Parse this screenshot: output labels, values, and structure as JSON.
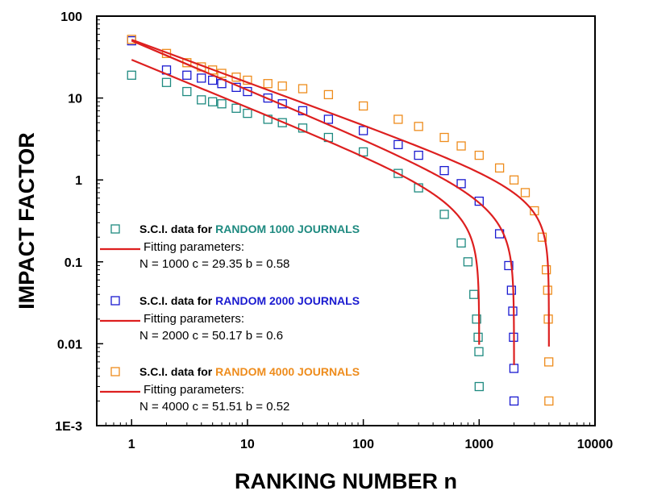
{
  "chart_data": {
    "type": "scatter",
    "xscale": "log",
    "yscale": "log",
    "xlim": [
      0.5,
      10000
    ],
    "ylim": [
      0.001,
      100
    ],
    "xlabel": "RANKING NUMBER  n",
    "ylabel": "IMPACT FACTOR",
    "x_ticks": [
      "1",
      "10",
      "100",
      "1000",
      "10000"
    ],
    "y_ticks": [
      "1E-3",
      "0.01",
      "0.1",
      "1",
      "10",
      "100"
    ],
    "grid": false,
    "marker": "open-square",
    "fit_color": "#dd1f1f",
    "series": [
      {
        "legend_prefix": "S.C.I. data for ",
        "legend_highlight": "RANDOM 1000 JOURNALS",
        "color": "#1e8a80",
        "N": 1000,
        "c": 29.35,
        "b": 0.58,
        "points": [
          [
            1,
            19
          ],
          [
            2,
            15.5
          ],
          [
            3,
            12
          ],
          [
            4,
            9.5
          ],
          [
            5,
            9
          ],
          [
            6,
            8.5
          ],
          [
            8,
            7.5
          ],
          [
            10,
            6.5
          ],
          [
            15,
            5.5
          ],
          [
            20,
            5
          ],
          [
            30,
            4.3
          ],
          [
            50,
            3.3
          ],
          [
            100,
            2.2
          ],
          [
            200,
            1.2
          ],
          [
            300,
            0.8
          ],
          [
            500,
            0.38
          ],
          [
            700,
            0.17
          ],
          [
            800,
            0.1
          ],
          [
            900,
            0.04
          ],
          [
            950,
            0.02
          ],
          [
            980,
            0.012
          ],
          [
            995,
            0.008
          ],
          [
            1000,
            0.003
          ]
        ]
      },
      {
        "legend_prefix": "S.C.I. data for ",
        "legend_highlight": "RANDOM 2000 JOURNALS",
        "color": "#1a1ad0",
        "N": 2000,
        "c": 50.17,
        "b": 0.6,
        "points": [
          [
            1,
            50
          ],
          [
            2,
            22
          ],
          [
            3,
            19
          ],
          [
            4,
            17.5
          ],
          [
            5,
            16.5
          ],
          [
            6,
            15
          ],
          [
            8,
            13.5
          ],
          [
            10,
            12
          ],
          [
            15,
            10
          ],
          [
            20,
            8.5
          ],
          [
            30,
            7
          ],
          [
            50,
            5.5
          ],
          [
            100,
            4
          ],
          [
            200,
            2.7
          ],
          [
            300,
            2
          ],
          [
            500,
            1.3
          ],
          [
            700,
            0.9
          ],
          [
            1000,
            0.55
          ],
          [
            1500,
            0.22
          ],
          [
            1800,
            0.09
          ],
          [
            1900,
            0.045
          ],
          [
            1950,
            0.025
          ],
          [
            1980,
            0.012
          ],
          [
            1995,
            0.005
          ],
          [
            2000,
            0.002
          ]
        ]
      },
      {
        "legend_prefix": "S.C.I. data for ",
        "legend_highlight": "RANDOM 4000 JOURNALS",
        "color": "#ee8c1c",
        "N": 4000,
        "c": 51.51,
        "b": 0.52,
        "points": [
          [
            1,
            52
          ],
          [
            2,
            35
          ],
          [
            3,
            27
          ],
          [
            4,
            24
          ],
          [
            5,
            22
          ],
          [
            6,
            20
          ],
          [
            8,
            18
          ],
          [
            10,
            16.5
          ],
          [
            15,
            15
          ],
          [
            20,
            14
          ],
          [
            30,
            13
          ],
          [
            50,
            11
          ],
          [
            100,
            8
          ],
          [
            200,
            5.5
          ],
          [
            300,
            4.5
          ],
          [
            500,
            3.3
          ],
          [
            700,
            2.6
          ],
          [
            1000,
            2
          ],
          [
            1500,
            1.4
          ],
          [
            2000,
            1
          ],
          [
            2500,
            0.7
          ],
          [
            3000,
            0.42
          ],
          [
            3500,
            0.2
          ],
          [
            3800,
            0.08
          ],
          [
            3900,
            0.045
          ],
          [
            3950,
            0.02
          ],
          [
            3990,
            0.006
          ],
          [
            4000,
            0.002
          ]
        ]
      }
    ],
    "legend": [
      {
        "label_prefix": "S.C.I. data for ",
        "label_highlight": "RANDOM 1000 JOURNALS",
        "fit_title": "Fitting parameters:",
        "fit_params": "N = 1000  c = 29.35  b = 0.58"
      },
      {
        "label_prefix": "S.C.I. data for ",
        "label_highlight": "RANDOM 2000 JOURNALS",
        "fit_title": "Fitting parameters:",
        "fit_params": "N = 2000  c = 50.17  b = 0.6"
      },
      {
        "label_prefix": "S.C.I. data for ",
        "label_highlight": "RANDOM 4000 JOURNALS",
        "fit_title": "Fitting parameters:",
        "fit_params": "N = 4000  c = 51.51  b = 0.52"
      }
    ]
  }
}
